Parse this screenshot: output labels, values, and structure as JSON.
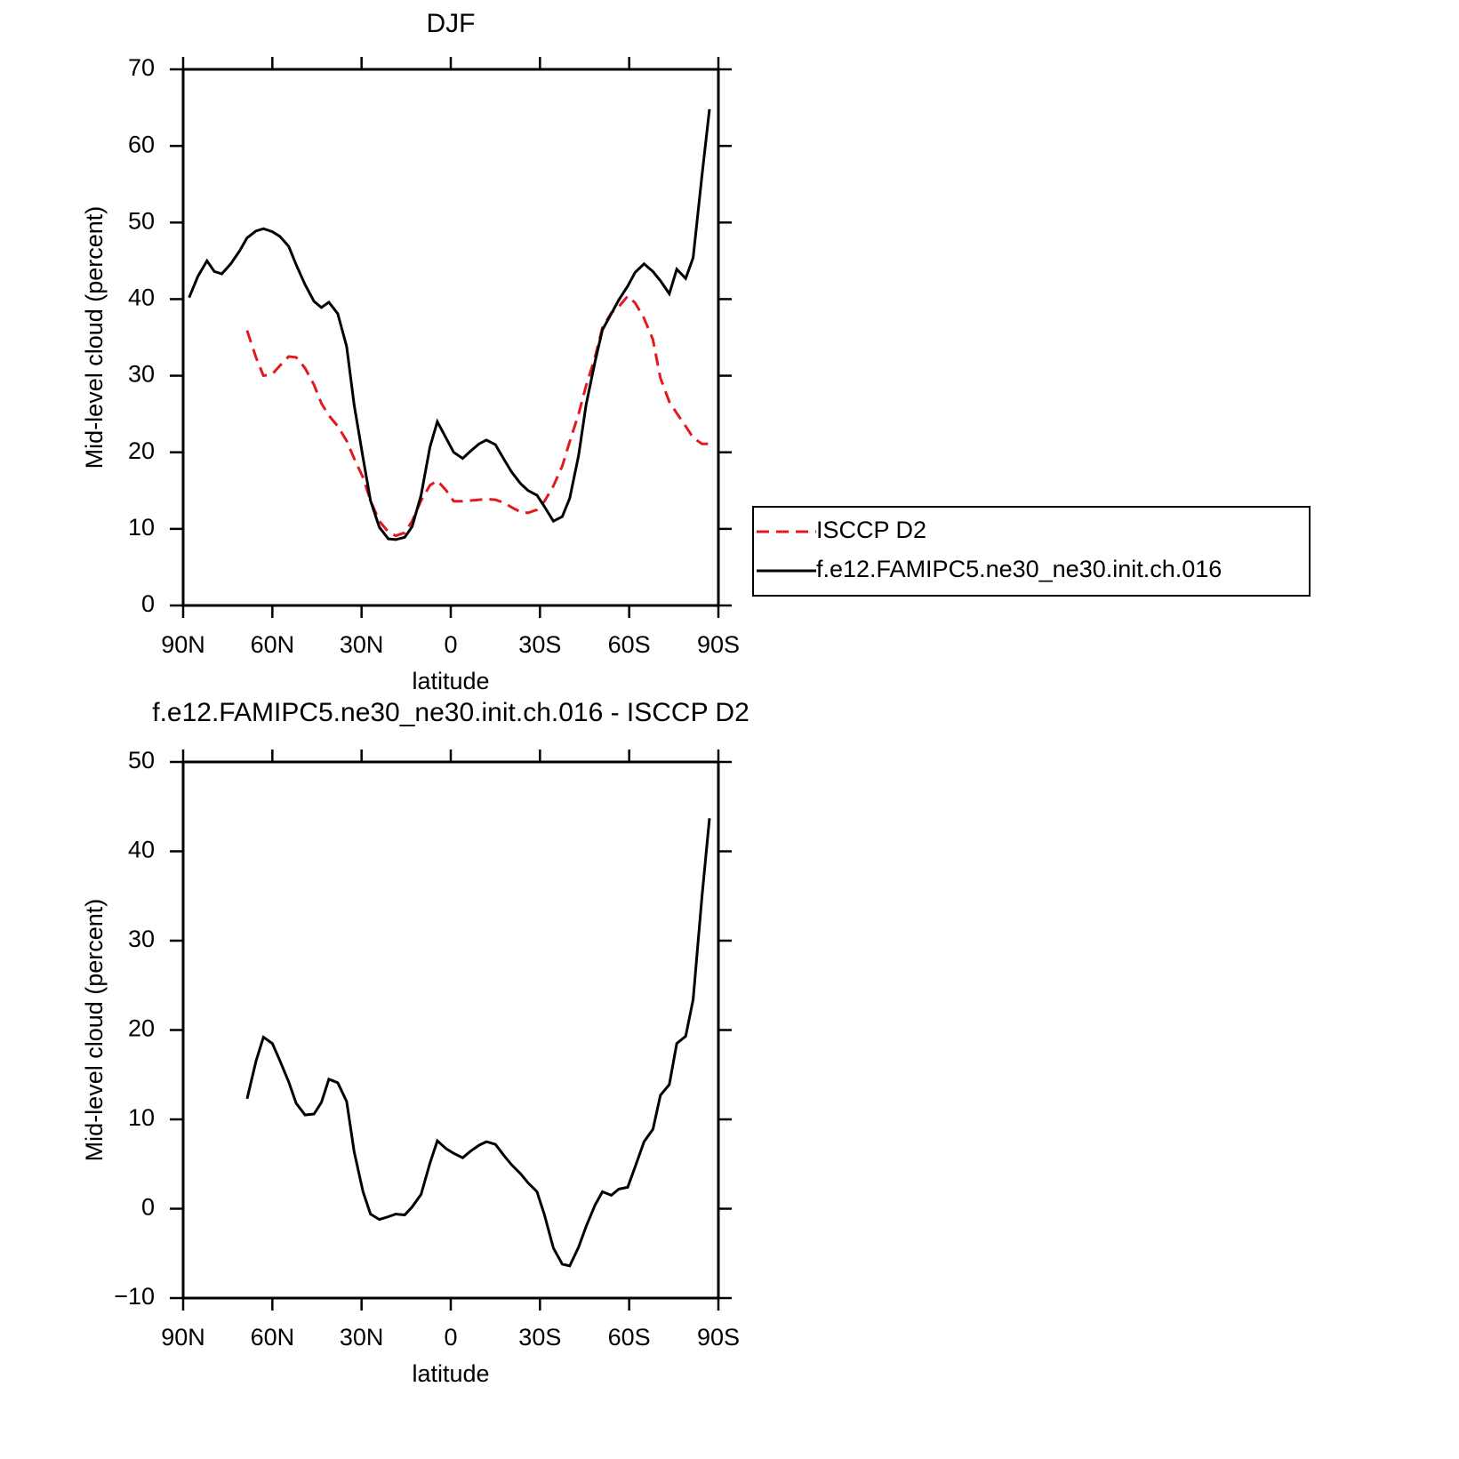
{
  "chart_data": [
    {
      "type": "line",
      "title": "DJF",
      "xlabel": "latitude",
      "ylabel": "Mid-level cloud (percent)",
      "x": [
        88,
        85,
        82,
        79.5,
        77,
        74,
        71,
        68.5,
        65.5,
        63,
        60,
        57.5,
        54.5,
        52,
        49,
        46,
        43.5,
        41,
        38,
        35,
        32.5,
        29.5,
        27,
        24,
        21,
        18.5,
        15.5,
        13,
        10,
        7,
        4.5,
        1.5,
        -1,
        -4,
        -6.5,
        -9.5,
        -12,
        -15,
        -18,
        -20.5,
        -23.5,
        -26,
        -29,
        -31.5,
        -34.5,
        -37.5,
        -40,
        -43,
        -45.5,
        -48.5,
        -51,
        -54,
        -56.5,
        -59.5,
        -62,
        -65,
        -68,
        -70.5,
        -73.5,
        -76,
        -79,
        -81.5,
        -84.5,
        -87
      ],
      "xlim": [
        90,
        -90
      ],
      "xticks": [
        {
          "value": 90,
          "label": "90N"
        },
        {
          "value": 60,
          "label": "60N"
        },
        {
          "value": 30,
          "label": "30N"
        },
        0,
        {
          "value": -30,
          "label": "30S"
        },
        {
          "value": -60,
          "label": "60S"
        },
        {
          "value": -90,
          "label": "90S"
        }
      ],
      "ylim": [
        0,
        70
      ],
      "yticks": [
        0,
        10,
        20,
        30,
        40,
        50,
        60,
        70
      ],
      "legend": "outside right",
      "series": [
        {
          "name": "ISCCP D2",
          "color": "#e31a1c",
          "linestyle": "dashed",
          "values": [
            null,
            null,
            null,
            null,
            null,
            null,
            null,
            35.9,
            32.4,
            30,
            30.2,
            31.3,
            32.5,
            32.4,
            31,
            28.8,
            26.4,
            24.8,
            23.4,
            21.5,
            19.2,
            16.7,
            13.7,
            11,
            9.6,
            9.1,
            9.5,
            11,
            13.7,
            15.7,
            16.3,
            15,
            13.6,
            13.6,
            13.7,
            13.8,
            13.9,
            13.8,
            13.4,
            12.8,
            12.2,
            12.1,
            12.5,
            13.6,
            15.6,
            18.2,
            21.4,
            25,
            28.7,
            32.4,
            36.3,
            38.2,
            39,
            40.4,
            39.5,
            37.5,
            34.7,
            29.7,
            26.6,
            25.1,
            23.4,
            21.9,
            21.1,
            21.1
          ]
        },
        {
          "name": "f.e12.FAMIPC5.ne30_ne30.init.ch.016",
          "color": "#000000",
          "linestyle": "solid",
          "values": [
            40.2,
            43,
            45,
            43.6,
            43.3,
            44.6,
            46.3,
            48,
            48.9,
            49.2,
            48.8,
            48.2,
            46.9,
            44.5,
            41.9,
            39.7,
            38.9,
            39.6,
            38.1,
            33.8,
            26.2,
            19.3,
            13.7,
            10.2,
            8.7,
            8.6,
            8.9,
            10.3,
            14.4,
            20.7,
            24,
            21.8,
            20,
            19.2,
            20.1,
            21.1,
            21.6,
            21,
            19,
            17.4,
            15.9,
            15,
            14.4,
            12.9,
            11,
            11.6,
            14,
            19.6,
            26.2,
            31.8,
            36,
            38.1,
            39.9,
            41.7,
            43.5,
            44.6,
            43.6,
            42.4,
            40.7,
            43.9,
            42.7,
            45.4,
            56.2,
            64.8
          ]
        }
      ]
    },
    {
      "type": "line",
      "title": "f.e12.FAMIPC5.ne30_ne30.init.ch.016 - ISCCP D2",
      "xlabel": "latitude",
      "ylabel": "Mid-level cloud (percent)",
      "x": [
        68.5,
        65.5,
        63,
        60,
        57.5,
        54.5,
        52,
        49,
        46,
        43.5,
        41,
        38,
        35,
        32.5,
        29.5,
        27,
        24,
        21,
        18.5,
        15.5,
        13,
        10,
        7,
        4.5,
        1.5,
        -1,
        -4,
        -6.5,
        -9.5,
        -12,
        -15,
        -18,
        -20.5,
        -23.5,
        -26,
        -29,
        -31.5,
        -34.5,
        -37.5,
        -40,
        -43,
        -45.5,
        -48.5,
        -51,
        -54,
        -56.5,
        -59.5,
        -62,
        -65,
        -68,
        -70.5,
        -73.5,
        -76,
        -79,
        -81.5,
        -84.5,
        -87
      ],
      "xlim": [
        90,
        -90
      ],
      "xticks": [
        {
          "value": 90,
          "label": "90N"
        },
        {
          "value": 60,
          "label": "60N"
        },
        {
          "value": 30,
          "label": "30N"
        },
        0,
        {
          "value": -30,
          "label": "30S"
        },
        {
          "value": -60,
          "label": "60S"
        },
        {
          "value": -90,
          "label": "90S"
        }
      ],
      "ylim": [
        -10,
        50
      ],
      "yticks": [
        {
          "value": -10,
          "label": "−10"
        },
        0,
        10,
        20,
        30,
        40,
        50
      ],
      "series": [
        {
          "color": "#000000",
          "linestyle": "solid",
          "values": [
            12.3,
            16.5,
            19.2,
            18.5,
            16.6,
            14.2,
            11.8,
            10.5,
            10.6,
            11.9,
            14.5,
            14.1,
            12,
            6.4,
            1.9,
            -0.6,
            -1.2,
            -0.9,
            -0.6,
            -0.7,
            0.2,
            1.6,
            5.1,
            7.6,
            6.7,
            6.2,
            5.7,
            6.4,
            7.1,
            7.5,
            7.2,
            5.9,
            4.9,
            3.9,
            2.9,
            1.9,
            -0.7,
            -4.4,
            -6.2,
            -6.4,
            -4.3,
            -2,
            0.4,
            1.9,
            1.5,
            2.2,
            2.4,
            4.7,
            7.5,
            8.9,
            12.7,
            13.9,
            18.5,
            19.3,
            23.4,
            35,
            43.7
          ]
        }
      ]
    }
  ]
}
